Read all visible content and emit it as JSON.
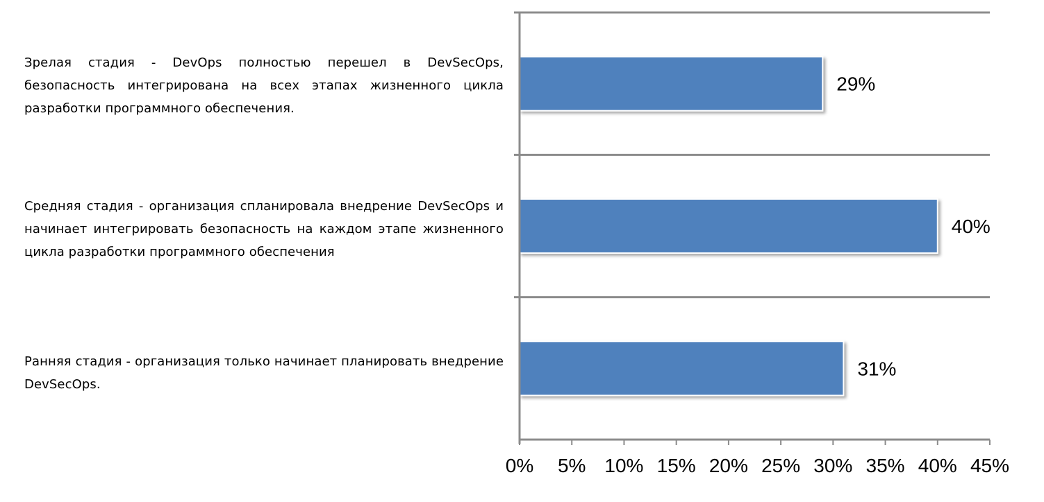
{
  "chart_data": {
    "type": "bar",
    "orientation": "horizontal",
    "categories": [
      "Зрелая стадия - DevOps полностью перешел в DevSecOps, безопасность интегрирована на всех этапах жизненного цикла разработки программного обеспечения.",
      "Средняя стадия - организация спланировала внедрение DevSecOps и начинает интегрировать безопасность на каждом этапе жизненного цикла разработки программного обеспечения",
      "Ранняя стадия - организация только начинает планировать внедрение DevSecOps."
    ],
    "values": [
      29,
      40,
      31
    ],
    "value_labels": [
      "29%",
      "40%",
      "31%"
    ],
    "xlim": [
      0,
      45
    ],
    "x_ticks": [
      0,
      5,
      10,
      15,
      20,
      25,
      30,
      35,
      40,
      45
    ],
    "x_tick_labels": [
      "0%",
      "5%",
      "10%",
      "15%",
      "20%",
      "25%",
      "30%",
      "35%",
      "40%",
      "45%"
    ],
    "title": "",
    "xlabel": "",
    "ylabel": "",
    "grid": "horizontal category separators",
    "legend": "none",
    "bar_color": "#4f81bd",
    "axis_color": "#8c8c8c"
  }
}
